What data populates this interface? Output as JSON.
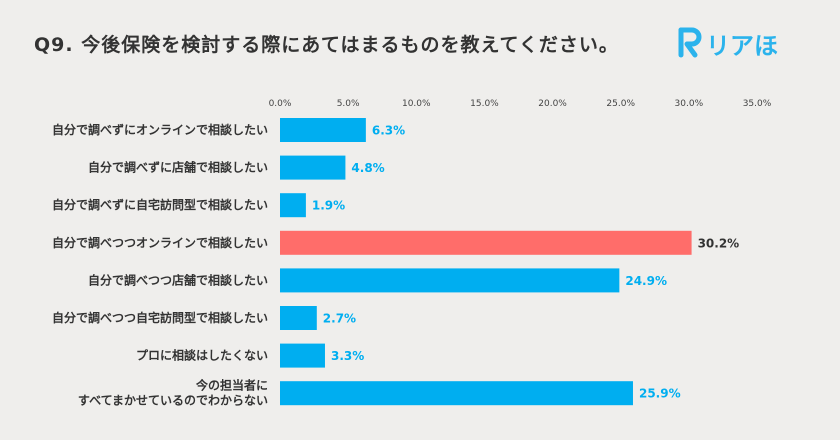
{
  "header": {
    "title": "Q9. 今後保険を検討する際にあてはまるものを教えてください。",
    "logo_text": "リアほ",
    "logo_color": "#2bb3ec"
  },
  "chart_data": {
    "type": "bar",
    "orientation": "horizontal",
    "categories": [
      "自分で調べずにオンラインで相談したい",
      "自分で調べずに店舗で相談したい",
      "自分で調べずに自宅訪問型で相談したい",
      "自分で調べつつオンラインで相談したい",
      "自分で調べつつ店舗で相談したい",
      "自分で調べつつ自宅訪問型で相談したい",
      "プロに相談はしたくない",
      "今の担当者に\nすべてまかせているのでわからない"
    ],
    "values": [
      6.3,
      4.8,
      1.9,
      30.2,
      24.9,
      2.7,
      3.3,
      25.9
    ],
    "value_labels": [
      "6.3%",
      "4.8%",
      "1.9%",
      "30.2%",
      "24.9%",
      "2.7%",
      "3.3%",
      "25.9%"
    ],
    "xlim": [
      0,
      35
    ],
    "x_ticks": [
      0,
      5,
      10,
      15,
      20,
      25,
      30,
      35
    ],
    "x_tick_labels": [
      "0.0%",
      "5.0%",
      "10.0%",
      "15.0%",
      "20.0%",
      "25.0%",
      "30.0%",
      "35.0%"
    ],
    "axis_position": "top",
    "grid": false,
    "bar_color": "#00aef0",
    "highlight_color": "#ff6d6a",
    "highlight_index": 3,
    "label_color": "#00aef0",
    "highlight_label_color": "#333333"
  }
}
